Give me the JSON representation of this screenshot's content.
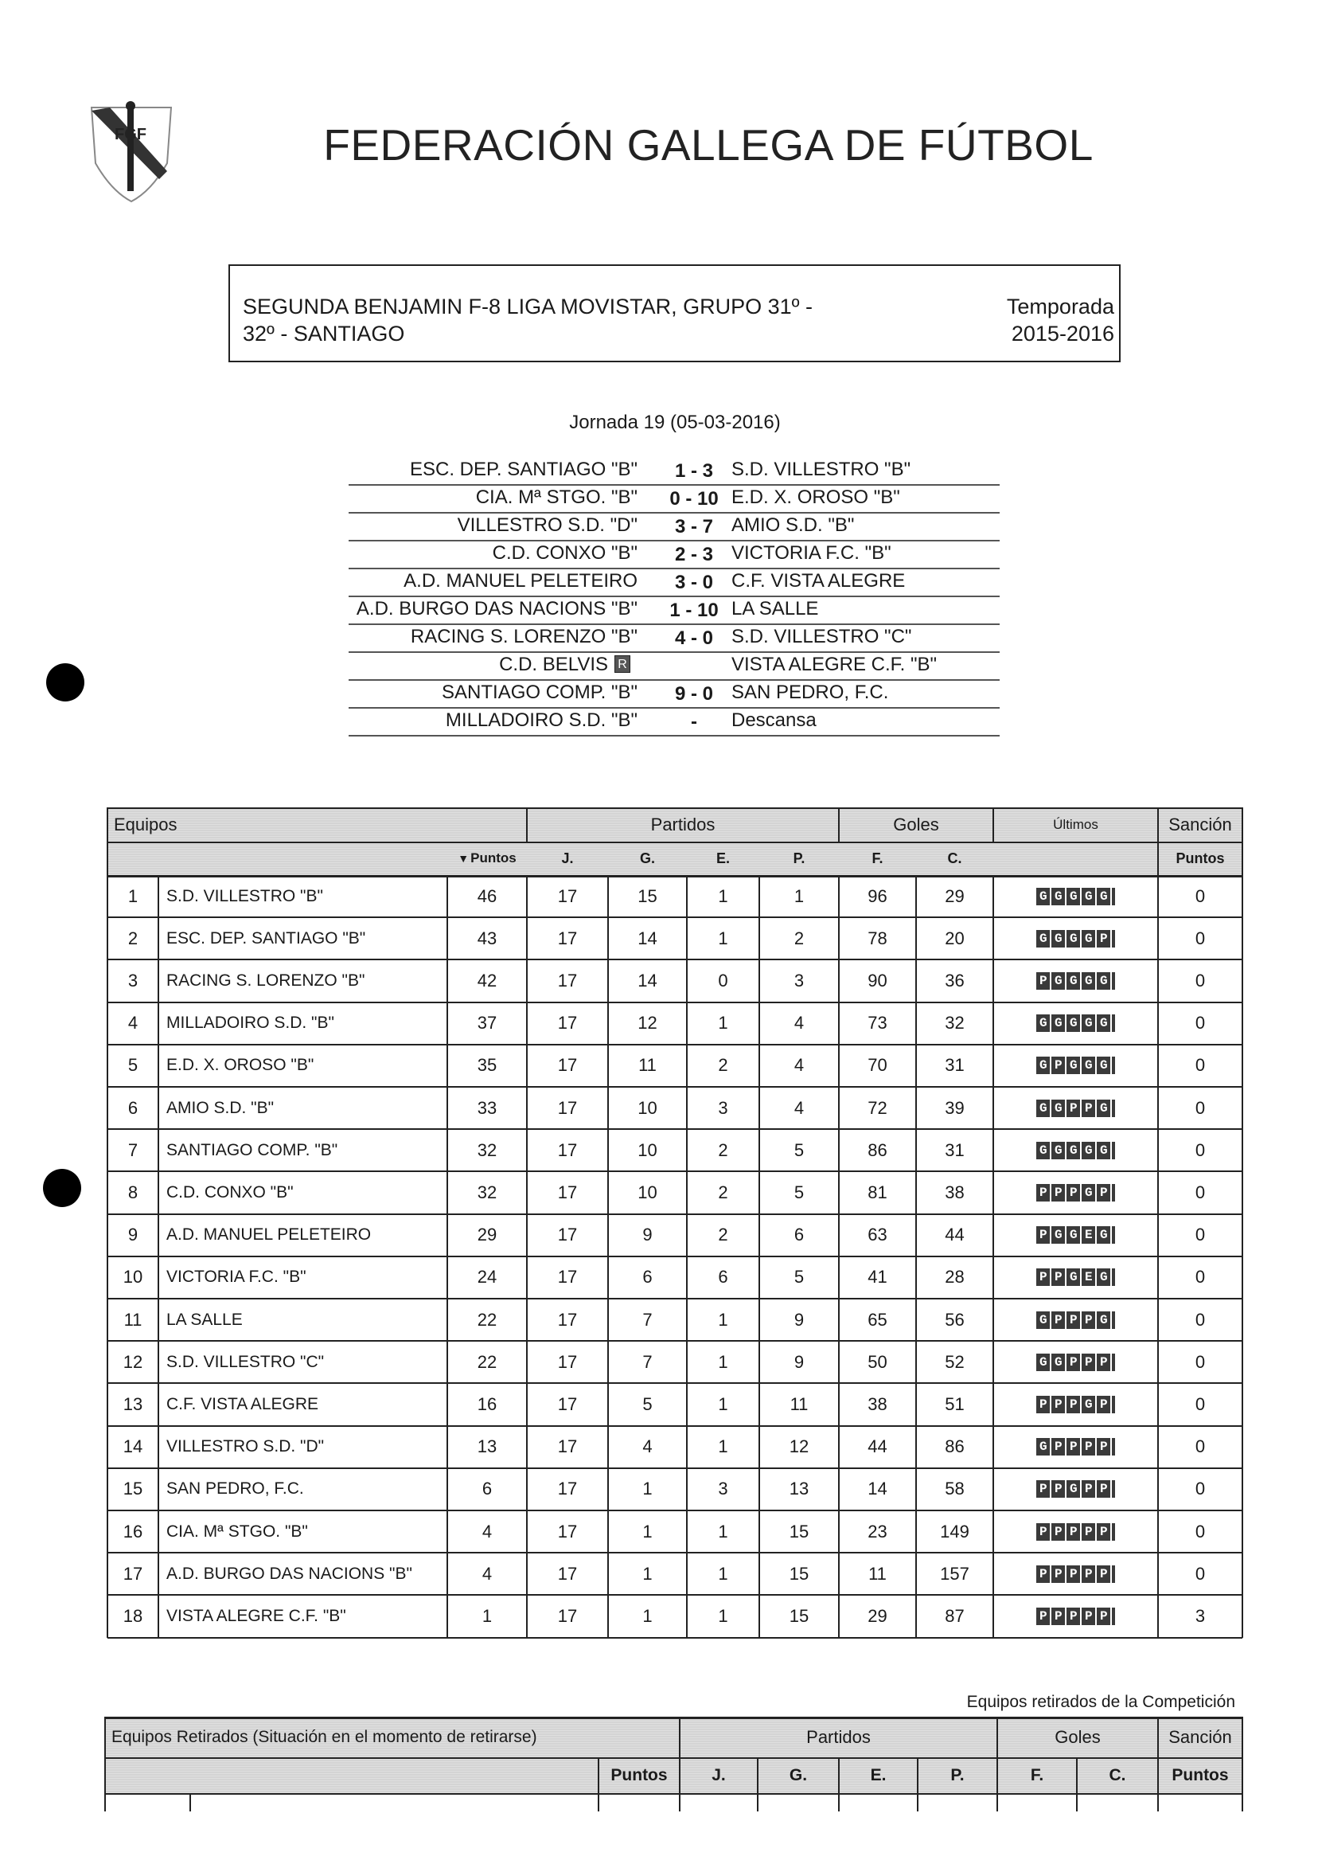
{
  "header": {
    "logo_text": "FGF",
    "title": "FEDERACIÓN GALLEGA DE FÚTBOL"
  },
  "competition": {
    "name_line1": "SEGUNDA BENJAMIN F-8 LIGA MOVISTAR, GRUPO 31º -",
    "name_line2": "32º - SANTIAGO",
    "season_label": "Temporada",
    "season": "2015-2016"
  },
  "round": {
    "title": "Jornada 19 (05-03-2016)",
    "matches": [
      {
        "home": "ESC. DEP. SANTIAGO \"B\"",
        "score": "1 - 3",
        "away": "S.D. VILLESTRO \"B\""
      },
      {
        "home": "CIA. Mª STGO. \"B\"",
        "score": "0 - 10",
        "away": "E.D. X. OROSO \"B\""
      },
      {
        "home": "VILLESTRO S.D. \"D\"",
        "score": "3 - 7",
        "away": "AMIO S.D. \"B\""
      },
      {
        "home": "C.D. CONXO \"B\"",
        "score": "2 - 3",
        "away": "VICTORIA F.C. \"B\""
      },
      {
        "home": "A.D. MANUEL PELETEIRO",
        "score": "3 - 0",
        "away": "C.F. VISTA ALEGRE"
      },
      {
        "home": "A.D. BURGO DAS NACIONS \"B\"",
        "score": "1 - 10",
        "away": "LA SALLE"
      },
      {
        "home": "RACING S. LORENZO \"B\"",
        "score": "4 - 0",
        "away": "S.D. VILLESTRO \"C\""
      },
      {
        "home": "C.D. BELVIS",
        "score": "",
        "badge": "R",
        "away": "VISTA ALEGRE C.F. \"B\""
      },
      {
        "home": "SANTIAGO COMP. \"B\"",
        "score": "9 - 0",
        "away": "SAN PEDRO, F.C."
      },
      {
        "home": "MILLADOIRO S.D. \"B\"",
        "score": "-",
        "away": "Descansa"
      }
    ]
  },
  "standings": {
    "group_headers": {
      "equipos": "Equipos",
      "partidos": "Partidos",
      "goles": "Goles",
      "ultimos": "Últimos",
      "sancion": "Sanción"
    },
    "columns": {
      "puntos": "Puntos",
      "j": "J.",
      "g": "G.",
      "e": "E.",
      "p": "P.",
      "f": "F.",
      "c": "C.",
      "sancion_puntos": "Puntos"
    },
    "sort_icon": "triangle-down-icon",
    "rows": [
      {
        "pos": "1",
        "team": "S.D. VILLESTRO \"B\"",
        "pts": "46",
        "j": "17",
        "g": "15",
        "e": "1",
        "p": "1",
        "f": "96",
        "c": "29",
        "last": "GGGGG",
        "san": "0"
      },
      {
        "pos": "2",
        "team": "ESC. DEP. SANTIAGO \"B\"",
        "pts": "43",
        "j": "17",
        "g": "14",
        "e": "1",
        "p": "2",
        "f": "78",
        "c": "20",
        "last": "GGGGP",
        "san": "0"
      },
      {
        "pos": "3",
        "team": "RACING S. LORENZO \"B\"",
        "pts": "42",
        "j": "17",
        "g": "14",
        "e": "0",
        "p": "3",
        "f": "90",
        "c": "36",
        "last": "PGGGG",
        "san": "0"
      },
      {
        "pos": "4",
        "team": "MILLADOIRO S.D. \"B\"",
        "pts": "37",
        "j": "17",
        "g": "12",
        "e": "1",
        "p": "4",
        "f": "73",
        "c": "32",
        "last": "GGGGG",
        "san": "0"
      },
      {
        "pos": "5",
        "team": "E.D. X. OROSO \"B\"",
        "pts": "35",
        "j": "17",
        "g": "11",
        "e": "2",
        "p": "4",
        "f": "70",
        "c": "31",
        "last": "GPGGG",
        "san": "0"
      },
      {
        "pos": "6",
        "team": "AMIO S.D. \"B\"",
        "pts": "33",
        "j": "17",
        "g": "10",
        "e": "3",
        "p": "4",
        "f": "72",
        "c": "39",
        "last": "GGPPG",
        "san": "0"
      },
      {
        "pos": "7",
        "team": "SANTIAGO COMP. \"B\"",
        "pts": "32",
        "j": "17",
        "g": "10",
        "e": "2",
        "p": "5",
        "f": "86",
        "c": "31",
        "last": "GGGGG",
        "san": "0"
      },
      {
        "pos": "8",
        "team": "C.D. CONXO \"B\"",
        "pts": "32",
        "j": "17",
        "g": "10",
        "e": "2",
        "p": "5",
        "f": "81",
        "c": "38",
        "last": "PPPGP",
        "san": "0"
      },
      {
        "pos": "9",
        "team": "A.D. MANUEL PELETEIRO",
        "pts": "29",
        "j": "17",
        "g": "9",
        "e": "2",
        "p": "6",
        "f": "63",
        "c": "44",
        "last": "PGGEG",
        "san": "0"
      },
      {
        "pos": "10",
        "team": "VICTORIA F.C. \"B\"",
        "pts": "24",
        "j": "17",
        "g": "6",
        "e": "6",
        "p": "5",
        "f": "41",
        "c": "28",
        "last": "PPGEG",
        "san": "0"
      },
      {
        "pos": "11",
        "team": "LA SALLE",
        "pts": "22",
        "j": "17",
        "g": "7",
        "e": "1",
        "p": "9",
        "f": "65",
        "c": "56",
        "last": "GPPPG",
        "san": "0"
      },
      {
        "pos": "12",
        "team": "S.D. VILLESTRO \"C\"",
        "pts": "22",
        "j": "17",
        "g": "7",
        "e": "1",
        "p": "9",
        "f": "50",
        "c": "52",
        "last": "GGPPP",
        "san": "0"
      },
      {
        "pos": "13",
        "team": "C.F. VISTA ALEGRE",
        "pts": "16",
        "j": "17",
        "g": "5",
        "e": "1",
        "p": "11",
        "f": "38",
        "c": "51",
        "last": "PPPGP",
        "san": "0"
      },
      {
        "pos": "14",
        "team": "VILLESTRO S.D. \"D\"",
        "pts": "13",
        "j": "17",
        "g": "4",
        "e": "1",
        "p": "12",
        "f": "44",
        "c": "86",
        "last": "GPPPP",
        "san": "0"
      },
      {
        "pos": "15",
        "team": "SAN PEDRO, F.C.",
        "pts": "6",
        "j": "17",
        "g": "1",
        "e": "3",
        "p": "13",
        "f": "14",
        "c": "58",
        "last": "PPGPP",
        "san": "0"
      },
      {
        "pos": "16",
        "team": "CIA. Mª STGO. \"B\"",
        "pts": "4",
        "j": "17",
        "g": "1",
        "e": "1",
        "p": "15",
        "f": "23",
        "c": "149",
        "last": "PPPPP",
        "san": "0"
      },
      {
        "pos": "17",
        "team": "A.D. BURGO DAS NACIONS \"B\"",
        "pts": "4",
        "j": "17",
        "g": "1",
        "e": "1",
        "p": "15",
        "f": "11",
        "c": "157",
        "last": "PPPPP",
        "san": "0"
      },
      {
        "pos": "18",
        "team": "VISTA ALEGRE C.F. \"B\"",
        "pts": "1",
        "j": "17",
        "g": "1",
        "e": "1",
        "p": "15",
        "f": "29",
        "c": "87",
        "last": "PPPPP",
        "san": "3"
      }
    ]
  },
  "retired": {
    "caption": "Equipos retirados de la Competición",
    "group_headers": {
      "equipos": "Equipos Retirados (Situación en el momento de retirarse)",
      "partidos": "Partidos",
      "goles": "Goles",
      "sancion": "Sanción"
    },
    "columns": {
      "puntos": "Puntos",
      "j": "J.",
      "g": "G.",
      "e": "E.",
      "p": "P.",
      "f": "F.",
      "c": "C.",
      "sancion_puntos": "Puntos"
    }
  }
}
